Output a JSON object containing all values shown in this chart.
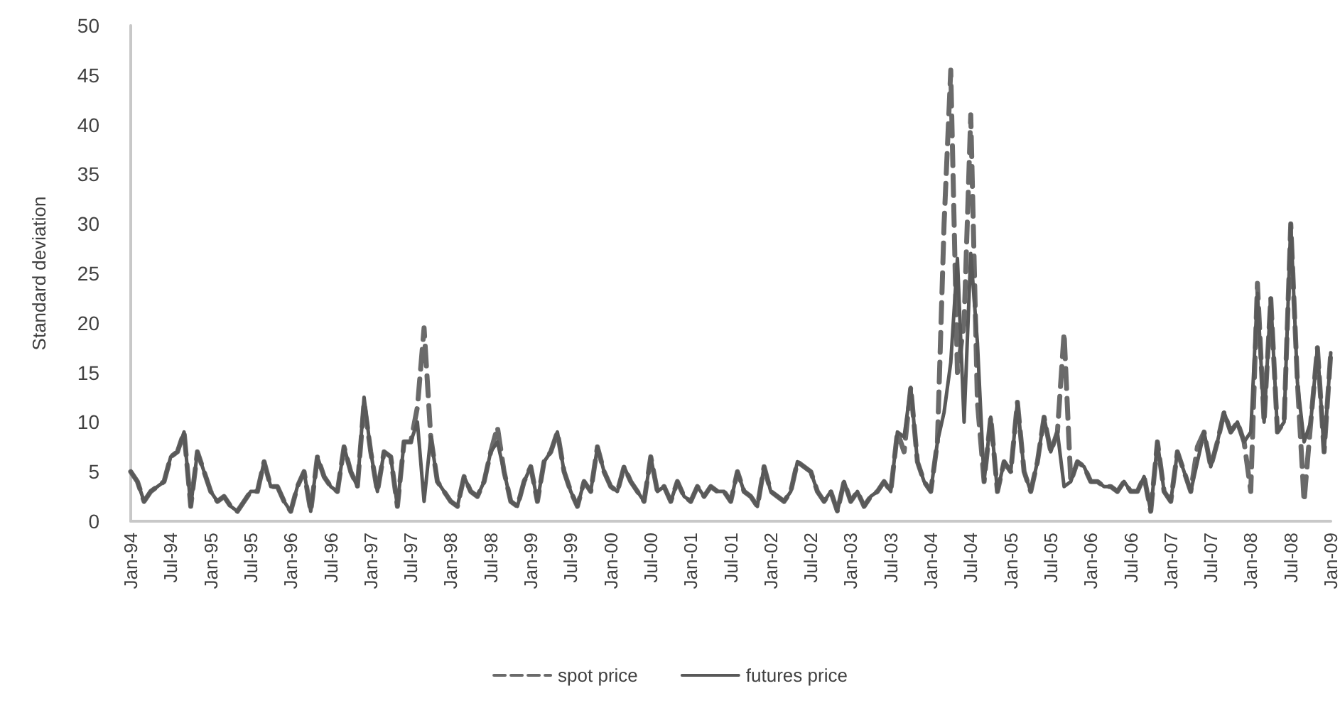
{
  "chart_data": {
    "type": "line",
    "ylabel": "Standard deviation",
    "categories": [
      "Jan-94",
      null,
      null,
      null,
      null,
      null,
      "Jul-94",
      null,
      null,
      null,
      null,
      null,
      "Jan-95",
      null,
      null,
      null,
      null,
      null,
      "Jul-95",
      null,
      null,
      null,
      null,
      null,
      "Jan-96",
      null,
      null,
      null,
      null,
      null,
      "Jul-96",
      null,
      null,
      null,
      null,
      null,
      "Jan-97",
      null,
      null,
      null,
      null,
      null,
      "Jul-97",
      null,
      null,
      null,
      null,
      null,
      "Jan-98",
      null,
      null,
      null,
      null,
      null,
      "Jul-98",
      null,
      null,
      null,
      null,
      null,
      "Jan-99",
      null,
      null,
      null,
      null,
      null,
      "Jul-99",
      null,
      null,
      null,
      null,
      null,
      "Jan-00",
      null,
      null,
      null,
      null,
      null,
      "Jul-00",
      null,
      null,
      null,
      null,
      null,
      "Jan-01",
      null,
      null,
      null,
      null,
      null,
      "Jul-01",
      null,
      null,
      null,
      null,
      null,
      "Jan-02",
      null,
      null,
      null,
      null,
      null,
      "Jul-02",
      null,
      null,
      null,
      null,
      null,
      "Jan-03",
      null,
      null,
      null,
      null,
      null,
      "Jul-03",
      null,
      null,
      null,
      null,
      null,
      "Jan-04",
      null,
      null,
      null,
      null,
      null,
      "Jul-04",
      null,
      null,
      null,
      null,
      null,
      "Jan-05",
      null,
      null,
      null,
      null,
      null,
      "Jul-05",
      null,
      null,
      null,
      null,
      null,
      "Jan-06",
      null,
      null,
      null,
      null,
      null,
      "Jul-06",
      null,
      null,
      null,
      null,
      null,
      "Jan-07",
      null,
      null,
      null,
      null,
      null,
      "Jul-07",
      null,
      null,
      null,
      null,
      null,
      "Jan-08",
      null,
      null,
      null,
      null,
      null,
      "Jul-08",
      null,
      null,
      null,
      null,
      null,
      "Jan-09"
    ],
    "series": [
      {
        "name": "spot price",
        "color": "#6a6a6a",
        "line_style": "dashed",
        "values": [
          5,
          4,
          2,
          3,
          3.5,
          4,
          6.5,
          7,
          9,
          1.5,
          7,
          5,
          3,
          2,
          2.5,
          1.5,
          1,
          2,
          3,
          3,
          6,
          3.5,
          3.5,
          2,
          1,
          3.5,
          5,
          1,
          6.5,
          4.5,
          3.5,
          3,
          7.5,
          5,
          3.5,
          12,
          7,
          3,
          7,
          6.5,
          1.5,
          8,
          8,
          11.5,
          19.5,
          8.5,
          4,
          3,
          2,
          1.5,
          4.5,
          3,
          2.5,
          4,
          7,
          9.5,
          5,
          2,
          1.5,
          4,
          5.5,
          2,
          6,
          7,
          9,
          5,
          3,
          1.5,
          4,
          3,
          7.5,
          5,
          3.5,
          3,
          5.5,
          4,
          3,
          2,
          6.5,
          3,
          3.5,
          2,
          4,
          2.5,
          2,
          3.5,
          2.5,
          3.5,
          3,
          3,
          2,
          5,
          3,
          2.5,
          1.5,
          5.5,
          3,
          2.5,
          2,
          3,
          6,
          5.5,
          5,
          3,
          2,
          3,
          1,
          4,
          2,
          3,
          1.5,
          2.5,
          3,
          4,
          3,
          9,
          7,
          13.5,
          6,
          4,
          3,
          8,
          30,
          45.5,
          15,
          20,
          41,
          12,
          4,
          10.5,
          3,
          6,
          5,
          12,
          5,
          3,
          6,
          10.5,
          7,
          9,
          19,
          4,
          6,
          5.5,
          4,
          4,
          3.5,
          3.5,
          3,
          4,
          3,
          3,
          4.5,
          1,
          8,
          3,
          2,
          7,
          5,
          3,
          7.5,
          9,
          5.5,
          8,
          11,
          9,
          10,
          8,
          3,
          24,
          10,
          22.5,
          9,
          10,
          30,
          14,
          2,
          10,
          17.5,
          7,
          17
        ]
      },
      {
        "name": "futures price",
        "color": "#595959",
        "line_style": "solid",
        "values": [
          5,
          4,
          2,
          3,
          3.5,
          4,
          6.5,
          7,
          9,
          1.5,
          7,
          5,
          3,
          2,
          2.5,
          1.5,
          1,
          2,
          3,
          3,
          6,
          3.5,
          3.5,
          2,
          1,
          3.5,
          5,
          1,
          6.5,
          4.5,
          3.5,
          3,
          7.5,
          5,
          3.5,
          12.5,
          7,
          3,
          7,
          6.5,
          1.5,
          8,
          8,
          10,
          2,
          8.5,
          4,
          3,
          2,
          1.5,
          4.5,
          3,
          2.5,
          4,
          7,
          8,
          5,
          2,
          1.5,
          4,
          5.5,
          2,
          6,
          7,
          9,
          5,
          3,
          1.5,
          4,
          3,
          7.5,
          5,
          3.5,
          3,
          5.5,
          4,
          3,
          2,
          6.5,
          3,
          3.5,
          2,
          4,
          2.5,
          2,
          3.5,
          2.5,
          3.5,
          3,
          3,
          2,
          5,
          3,
          2.5,
          1.5,
          5.5,
          3,
          2.5,
          2,
          3,
          6,
          5.5,
          5,
          3,
          2,
          3,
          1,
          4,
          2,
          3,
          1.5,
          2.5,
          3,
          4,
          3,
          9,
          8.5,
          13.5,
          6,
          4,
          3,
          8,
          11,
          16,
          26.5,
          10,
          27,
          18,
          4,
          10.5,
          3,
          6,
          5,
          12,
          5,
          3,
          6,
          10.5,
          7,
          9,
          3.5,
          4,
          6,
          5.5,
          4,
          4,
          3.5,
          3.5,
          3,
          4,
          3,
          3,
          4.5,
          1,
          8,
          3,
          2,
          7,
          5,
          3,
          6,
          9,
          5.5,
          8,
          11,
          9,
          10,
          8,
          9,
          23,
          10,
          22.5,
          9,
          10,
          30,
          14,
          8,
          10,
          17.5,
          7,
          17
        ]
      }
    ],
    "ylim": [
      0,
      50
    ],
    "yticks": [
      0,
      5,
      10,
      15,
      20,
      25,
      30,
      35,
      40,
      45,
      50
    ],
    "grid": false,
    "legend": "bottom",
    "marker": "none"
  }
}
